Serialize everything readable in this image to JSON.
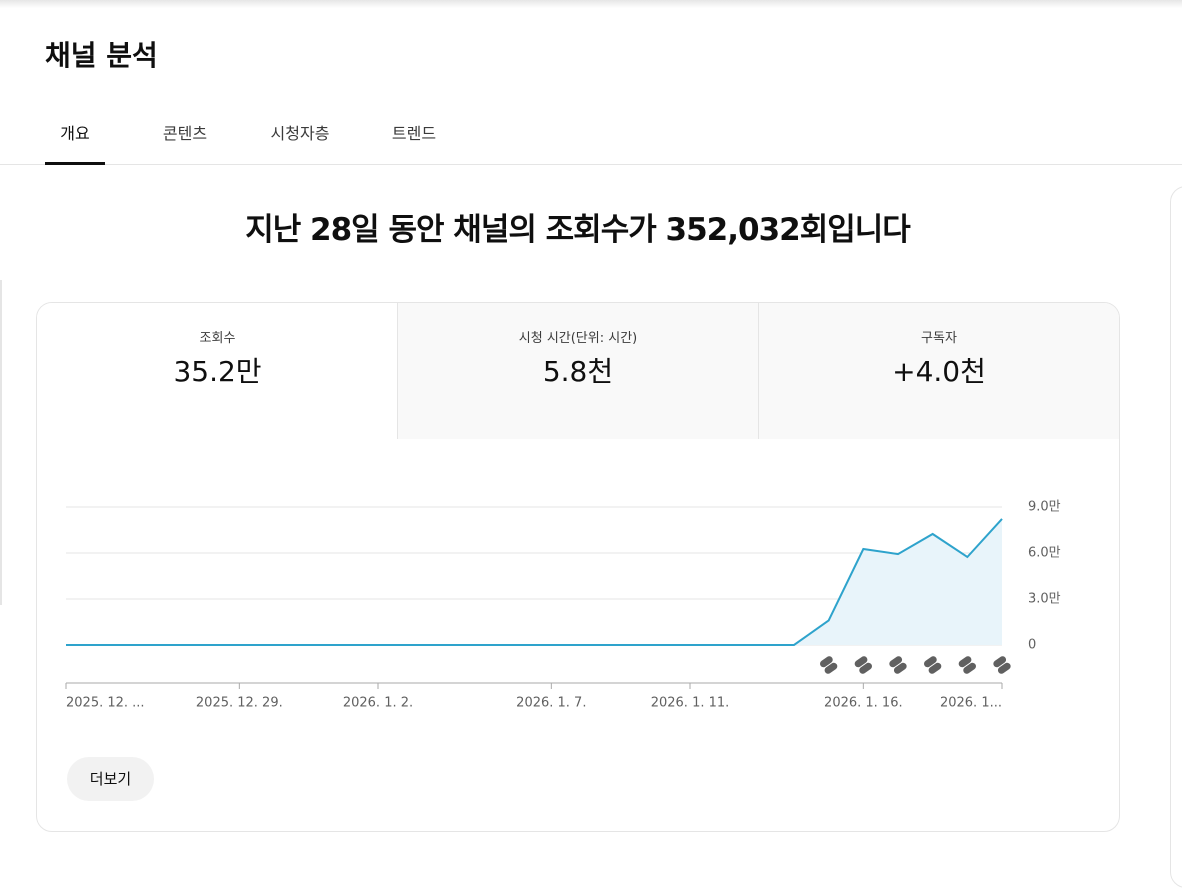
{
  "header": {
    "title": "채널 분석"
  },
  "tabs": [
    "개요",
    "콘텐츠",
    "시청자층",
    "트렌드"
  ],
  "headline": "지난 28일 동안 채널의 조회수가 352,032회입니다",
  "metrics": [
    {
      "label": "조회수",
      "value": "35.2만"
    },
    {
      "label": "시청 시간(단위: 시간)",
      "value": "5.8천"
    },
    {
      "label": "구독자",
      "value": "+4.0천"
    }
  ],
  "more_button": "더보기",
  "chart_data": {
    "type": "line",
    "categories": [
      "2025. 12. ...",
      null,
      null,
      null,
      null,
      "2025. 12. 29.",
      null,
      null,
      null,
      "2026. 1. 2.",
      null,
      null,
      null,
      null,
      "2026. 1. 7.",
      null,
      null,
      null,
      "2026. 1. 11.",
      null,
      null,
      null,
      null,
      "2026. 1. 16.",
      null,
      null,
      null,
      "2026. 1..."
    ],
    "series": [
      {
        "name": "조회수",
        "color": "#2ea3cc",
        "values": [
          0,
          0,
          0,
          0,
          0,
          0,
          0,
          0,
          0,
          0,
          0,
          0,
          0,
          0,
          0,
          0,
          0,
          0,
          0,
          0,
          0,
          0,
          16000,
          62600,
          59300,
          72400,
          57400,
          82200
        ]
      }
    ],
    "ylim": [
      0,
      90000
    ],
    "yticks": [
      0,
      {
        "value": 30000,
        "label": "3.0만"
      },
      {
        "value": 60000,
        "label": "6.0만"
      },
      {
        "value": 90000,
        "label": "9.0만"
      }
    ],
    "grid": true,
    "area": true
  }
}
